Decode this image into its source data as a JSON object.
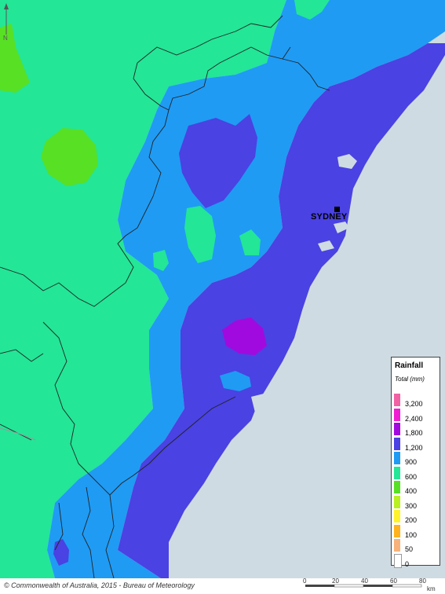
{
  "map": {
    "city": "SYDNEY",
    "copyright": "© Commonwealth of Australia, 2015 - Bureau of Meteorology",
    "north_label": "N"
  },
  "legend": {
    "title": "Rainfall",
    "subtitle": "Total (mm)",
    "items": [
      {
        "label": "3,200",
        "color": "#f062a4"
      },
      {
        "label": "2,400",
        "color": "#f01ed2"
      },
      {
        "label": "1,800",
        "color": "#a10adf"
      },
      {
        "label": "1,200",
        "color": "#4a42e2"
      },
      {
        "label": "900",
        "color": "#1f9bf4"
      },
      {
        "label": "600",
        "color": "#23e697"
      },
      {
        "label": "400",
        "color": "#58e025"
      },
      {
        "label": "300",
        "color": "#b9f021"
      },
      {
        "label": "200",
        "color": "#fff22b"
      },
      {
        "label": "100",
        "color": "#ffb21d"
      },
      {
        "label": "50",
        "color": "#f6b27a"
      },
      {
        "label": "0",
        "color": "#ffffff"
      }
    ]
  },
  "scale": {
    "ticks": [
      "0",
      "20",
      "40",
      "60",
      "80"
    ],
    "unit": "km"
  }
}
